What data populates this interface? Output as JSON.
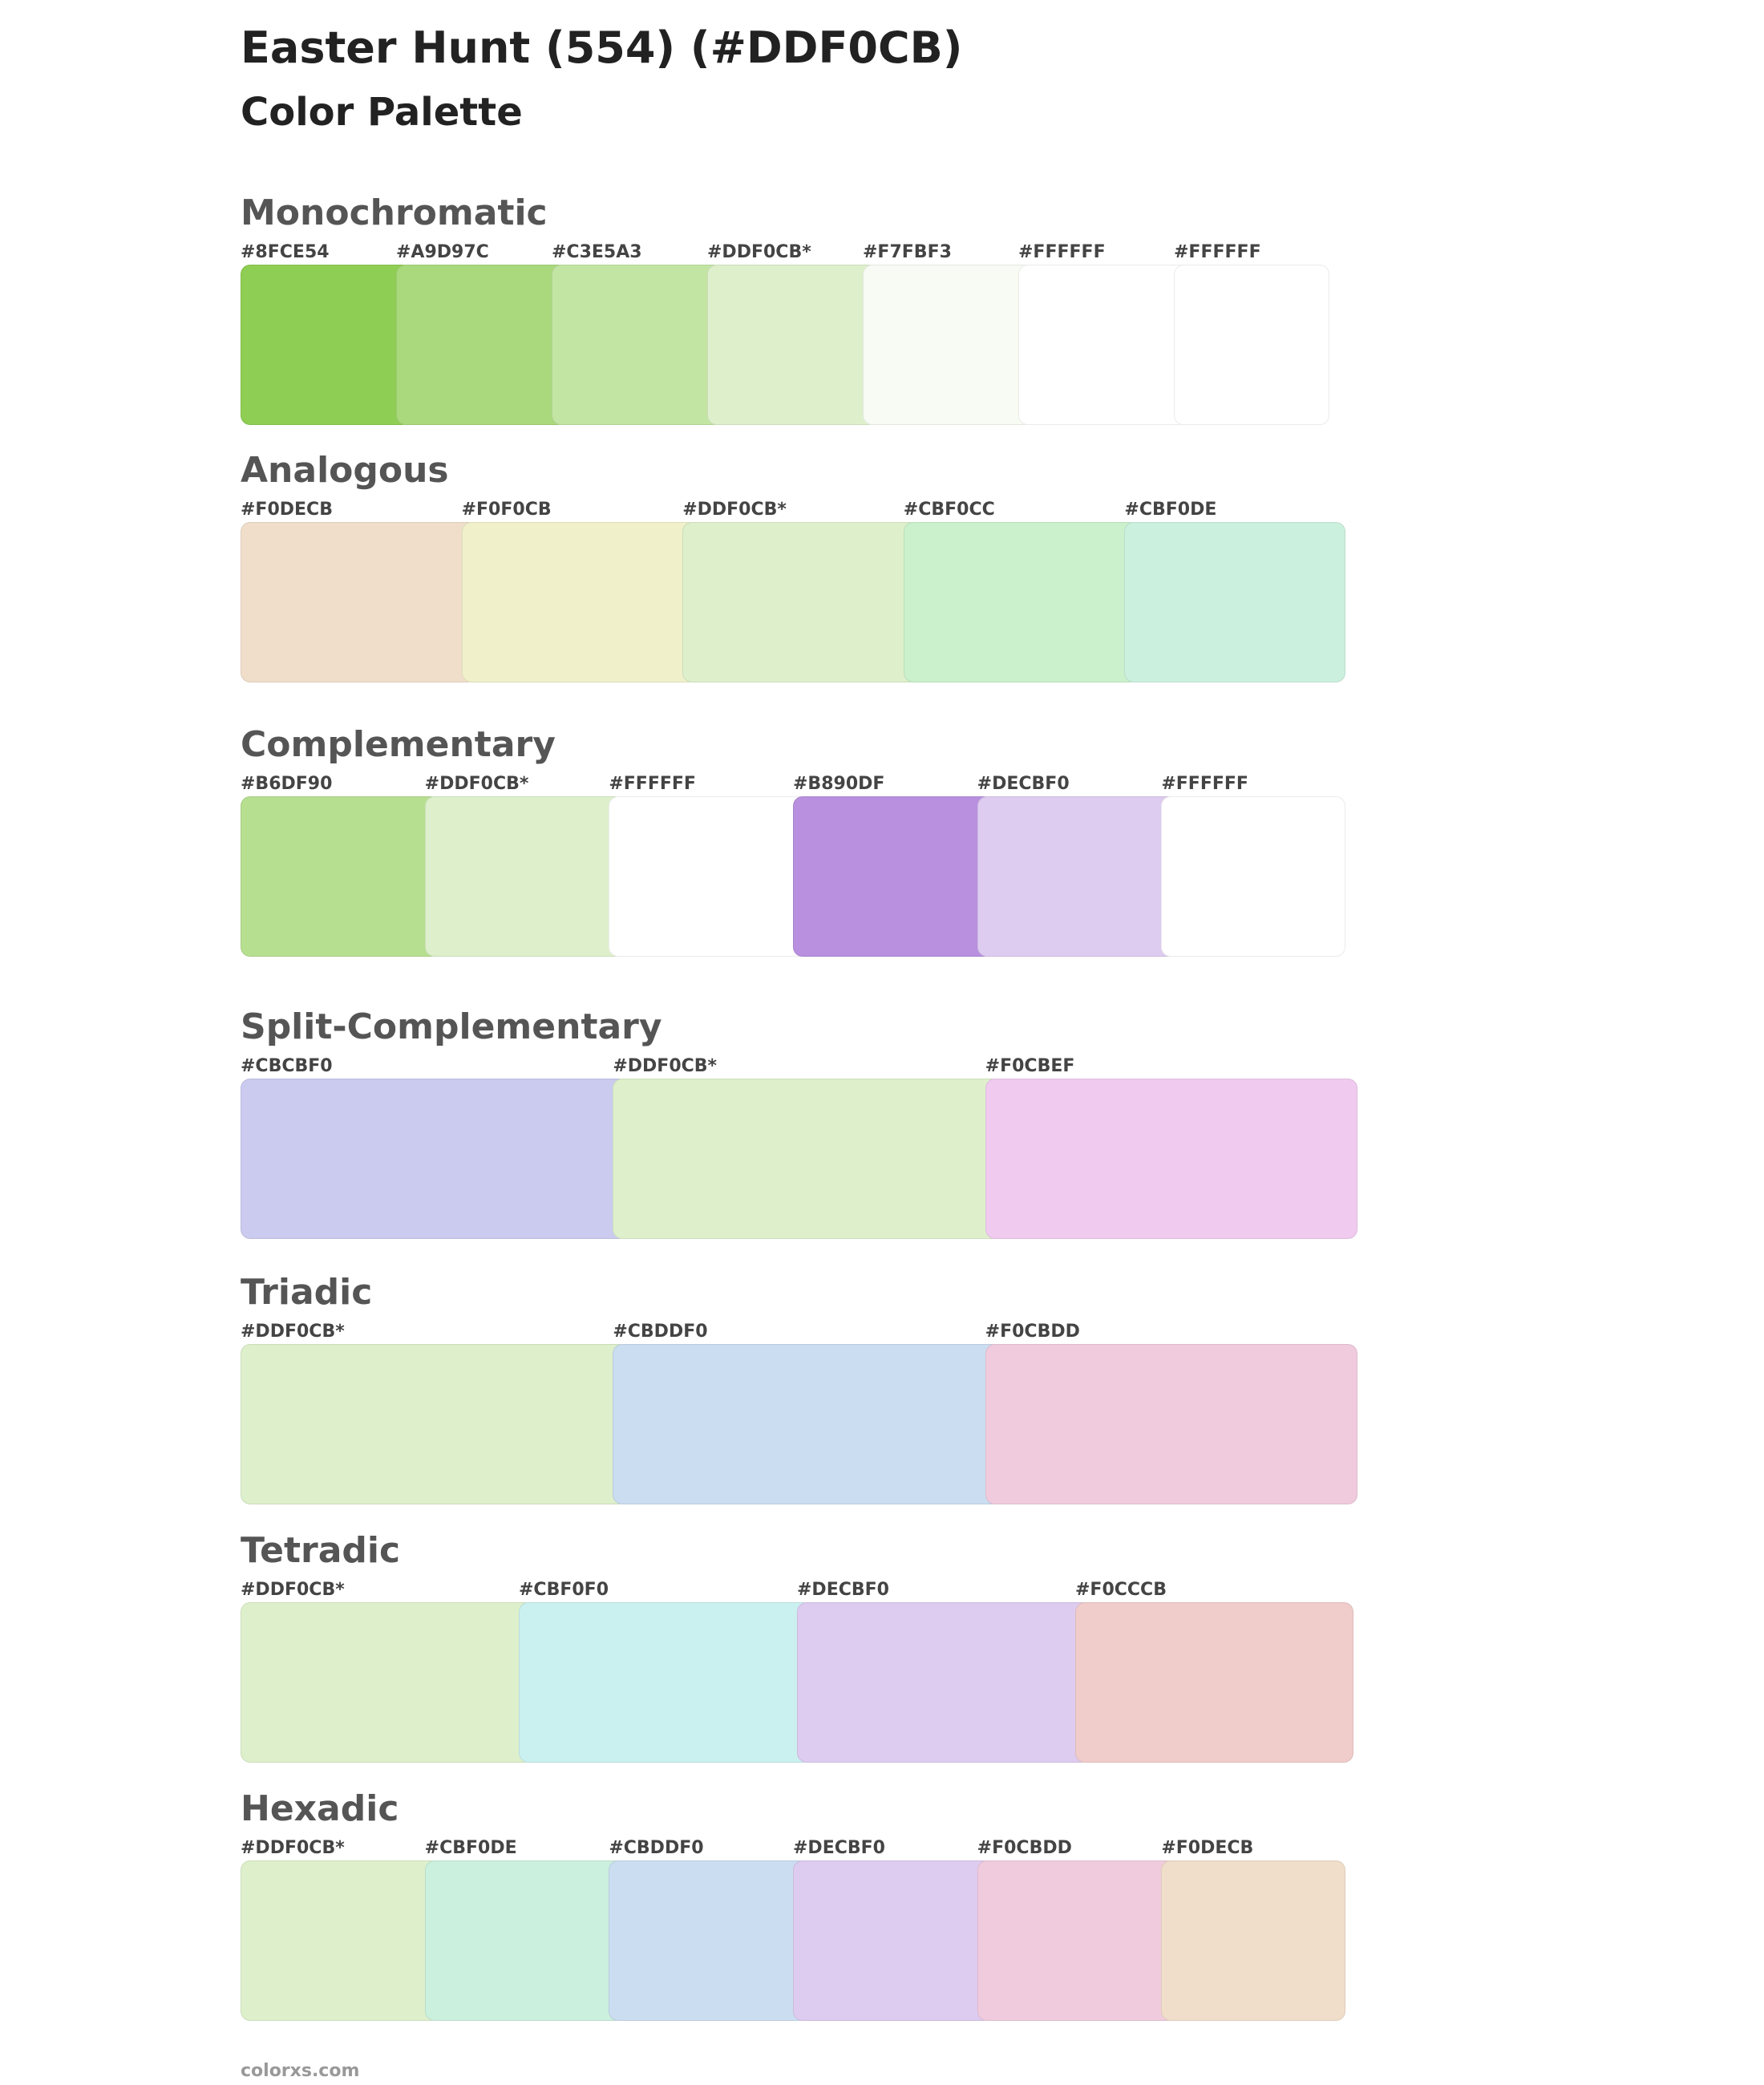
{
  "header": {
    "title": "Easter Hunt (554) (#DDF0CB)",
    "subtitle": "Color Palette"
  },
  "sections": [
    {
      "name": "Monochromatic",
      "swatches": [
        {
          "label": "#8FCE54",
          "color": "#8FCE54"
        },
        {
          "label": "#A9D97C",
          "color": "#A9D97C"
        },
        {
          "label": "#C3E5A3",
          "color": "#C3E5A3"
        },
        {
          "label": "#DDF0CB*",
          "color": "#DDF0CB"
        },
        {
          "label": "#F7FBF3",
          "color": "#F7FBF3"
        },
        {
          "label": "#FFFFFF",
          "color": "#FFFFFF"
        },
        {
          "label": "#FFFFFF",
          "color": "#FFFFFF"
        }
      ]
    },
    {
      "name": "Analogous",
      "swatches": [
        {
          "label": "#F0DECB",
          "color": "#F0DECB"
        },
        {
          "label": "#F0F0CB",
          "color": "#F0F0CB"
        },
        {
          "label": "#DDF0CB*",
          "color": "#DDF0CB"
        },
        {
          "label": "#CBF0CC",
          "color": "#CBF0CC"
        },
        {
          "label": "#CBF0DE",
          "color": "#CBF0DE"
        }
      ]
    },
    {
      "name": "Complementary",
      "swatches": [
        {
          "label": "#B6DF90",
          "color": "#B6DF90"
        },
        {
          "label": "#DDF0CB*",
          "color": "#DDF0CB"
        },
        {
          "label": "#FFFFFF",
          "color": "#FFFFFF"
        },
        {
          "label": "#B890DF",
          "color": "#B890DF"
        },
        {
          "label": "#DECBF0",
          "color": "#DECBF0"
        },
        {
          "label": "#FFFFFF",
          "color": "#FFFFFF"
        }
      ]
    },
    {
      "name": "Split-Complementary",
      "swatches": [
        {
          "label": "#CBCBF0",
          "color": "#CBCBF0"
        },
        {
          "label": "#DDF0CB*",
          "color": "#DDF0CB"
        },
        {
          "label": "#F0CBEF",
          "color": "#F0CBEF"
        }
      ]
    },
    {
      "name": "Triadic",
      "swatches": [
        {
          "label": "#DDF0CB*",
          "color": "#DDF0CB"
        },
        {
          "label": "#CBDDF0",
          "color": "#CBDDF0"
        },
        {
          "label": "#F0CBDD",
          "color": "#F0CBDD"
        }
      ]
    },
    {
      "name": "Tetradic",
      "swatches": [
        {
          "label": "#DDF0CB*",
          "color": "#DDF0CB"
        },
        {
          "label": "#CBF0F0",
          "color": "#CBF0F0"
        },
        {
          "label": "#DECBF0",
          "color": "#DECBF0"
        },
        {
          "label": "#F0CCCB",
          "color": "#F0CCCB"
        }
      ]
    },
    {
      "name": "Hexadic",
      "swatches": [
        {
          "label": "#DDF0CB*",
          "color": "#DDF0CB"
        },
        {
          "label": "#CBF0DE",
          "color": "#CBF0DE"
        },
        {
          "label": "#CBDDF0",
          "color": "#CBDDF0"
        },
        {
          "label": "#DECBF0",
          "color": "#DECBF0"
        },
        {
          "label": "#F0CBDD",
          "color": "#F0CBDD"
        },
        {
          "label": "#F0DECB",
          "color": "#F0DECB"
        }
      ]
    }
  ],
  "footer": "colorxs.com"
}
